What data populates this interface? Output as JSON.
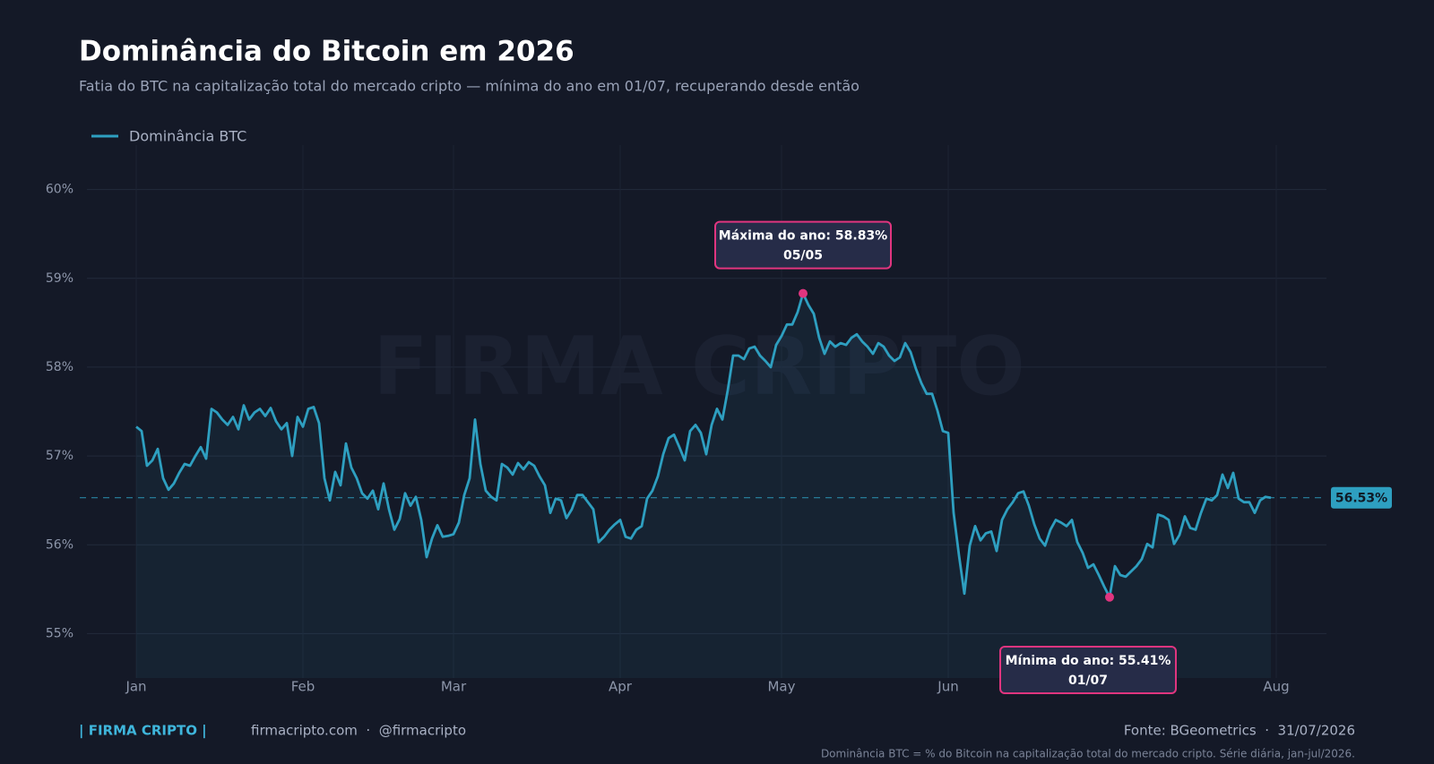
{
  "chart_data": {
    "type": "line",
    "title": "Dominância do Bitcoin em 2026",
    "subtitle": "Fatia do BTC na capitalização total do mercado cripto — mínima do ano em 01/07, recuperando desde então",
    "watermark": "FIRMA CRIPTO",
    "x": [
      "01/01",
      "02/01",
      "03/01",
      "04/01",
      "05/01",
      "06/01",
      "07/01",
      "08/01",
      "09/01",
      "10/01",
      "11/01",
      "12/01",
      "13/01",
      "14/01",
      "15/01",
      "16/01",
      "17/01",
      "18/01",
      "19/01",
      "20/01",
      "21/01",
      "22/01",
      "23/01",
      "24/01",
      "25/01",
      "26/01",
      "27/01",
      "28/01",
      "29/01",
      "30/01",
      "31/01",
      "01/02",
      "02/02",
      "03/02",
      "04/02",
      "05/02",
      "06/02",
      "07/02",
      "08/02",
      "09/02",
      "10/02",
      "11/02",
      "12/02",
      "13/02",
      "14/02",
      "15/02",
      "16/02",
      "17/02",
      "18/02",
      "19/02",
      "20/02",
      "21/02",
      "22/02",
      "23/02",
      "24/02",
      "25/02",
      "26/02",
      "27/02",
      "28/02",
      "01/03",
      "02/03",
      "03/03",
      "04/03",
      "05/03",
      "06/03",
      "07/03",
      "08/03",
      "09/03",
      "10/03",
      "11/03",
      "12/03",
      "13/03",
      "14/03",
      "15/03",
      "16/03",
      "17/03",
      "18/03",
      "19/03",
      "20/03",
      "21/03",
      "22/03",
      "23/03",
      "24/03",
      "25/03",
      "26/03",
      "27/03",
      "28/03",
      "29/03",
      "30/03",
      "31/03",
      "01/04",
      "02/04",
      "03/04",
      "04/04",
      "05/04",
      "06/04",
      "07/04",
      "08/04",
      "09/04",
      "10/04",
      "11/04",
      "12/04",
      "13/04",
      "14/04",
      "15/04",
      "16/04",
      "17/04",
      "18/04",
      "19/04",
      "20/04",
      "21/04",
      "22/04",
      "23/04",
      "24/04",
      "25/04",
      "26/04",
      "27/04",
      "28/04",
      "29/04",
      "30/04",
      "01/05",
      "02/05",
      "03/05",
      "04/05",
      "05/05",
      "06/05",
      "07/05",
      "08/05",
      "09/05",
      "10/05",
      "11/05",
      "12/05",
      "13/05",
      "14/05",
      "15/05",
      "16/05",
      "17/05",
      "18/05",
      "19/05",
      "20/05",
      "21/05",
      "22/05",
      "23/05",
      "24/05",
      "25/05",
      "26/05",
      "27/05",
      "28/05",
      "29/05",
      "30/05",
      "31/05",
      "01/06",
      "02/06",
      "03/06",
      "04/06",
      "05/06",
      "06/06",
      "07/06",
      "08/06",
      "09/06",
      "10/06",
      "11/06",
      "12/06",
      "13/06",
      "14/06",
      "15/06",
      "16/06",
      "17/06",
      "18/06",
      "19/06",
      "20/06",
      "21/06",
      "22/06",
      "23/06",
      "24/06",
      "25/06",
      "26/06",
      "27/06",
      "28/06",
      "29/06",
      "30/06",
      "01/07",
      "02/07",
      "03/07",
      "04/07",
      "05/07",
      "06/07",
      "07/07",
      "08/07",
      "09/07",
      "10/07",
      "11/07",
      "12/07",
      "13/07",
      "14/07",
      "15/07",
      "16/07",
      "17/07",
      "18/07",
      "19/07",
      "20/07",
      "21/07",
      "22/07",
      "23/07",
      "24/07",
      "25/07",
      "26/07",
      "27/07",
      "28/07",
      "29/07",
      "30/07",
      "31/07"
    ],
    "series": [
      {
        "name": "Dominância BTC",
        "color": "#2e9fc0",
        "values": [
          57.33,
          57.28,
          56.89,
          56.95,
          57.08,
          56.75,
          56.62,
          56.69,
          56.81,
          56.91,
          56.89,
          57.0,
          57.1,
          56.97,
          57.53,
          57.49,
          57.41,
          57.35,
          57.44,
          57.3,
          57.57,
          57.41,
          57.49,
          57.53,
          57.45,
          57.54,
          57.39,
          57.3,
          57.37,
          57.0,
          57.44,
          57.33,
          57.53,
          57.55,
          57.37,
          56.75,
          56.5,
          56.82,
          56.67,
          57.14,
          56.87,
          56.75,
          56.58,
          56.52,
          56.61,
          56.4,
          56.69,
          56.4,
          56.17,
          56.29,
          56.58,
          56.44,
          56.54,
          56.28,
          55.86,
          56.07,
          56.22,
          56.09,
          56.1,
          56.12,
          56.25,
          56.56,
          56.75,
          57.41,
          56.91,
          56.61,
          56.54,
          56.5,
          56.91,
          56.87,
          56.79,
          56.92,
          56.85,
          56.93,
          56.89,
          56.77,
          56.67,
          56.36,
          56.52,
          56.5,
          56.3,
          56.4,
          56.56,
          56.56,
          56.48,
          56.4,
          56.03,
          56.09,
          56.17,
          56.23,
          56.28,
          56.09,
          56.07,
          56.17,
          56.21,
          56.52,
          56.61,
          56.77,
          57.02,
          57.2,
          57.24,
          57.1,
          56.95,
          57.28,
          57.35,
          57.26,
          57.02,
          57.35,
          57.53,
          57.41,
          57.74,
          58.13,
          58.13,
          58.09,
          58.21,
          58.23,
          58.13,
          58.07,
          58.0,
          58.25,
          58.35,
          58.48,
          58.48,
          58.62,
          58.83,
          58.7,
          58.6,
          58.33,
          58.15,
          58.29,
          58.23,
          58.27,
          58.25,
          58.33,
          58.37,
          58.29,
          58.23,
          58.15,
          58.27,
          58.23,
          58.13,
          58.07,
          58.11,
          58.27,
          58.17,
          57.98,
          57.82,
          57.7,
          57.7,
          57.51,
          57.28,
          57.26,
          56.36,
          55.88,
          55.45,
          55.99,
          56.21,
          56.05,
          56.13,
          56.15,
          55.93,
          56.28,
          56.4,
          56.48,
          56.58,
          56.6,
          56.44,
          56.23,
          56.07,
          55.99,
          56.17,
          56.28,
          56.25,
          56.21,
          56.28,
          56.03,
          55.91,
          55.74,
          55.78,
          55.66,
          55.53,
          55.41,
          55.76,
          55.66,
          55.64,
          55.7,
          55.76,
          55.84,
          56.01,
          55.97,
          56.34,
          56.32,
          56.28,
          56.01,
          56.11,
          56.32,
          56.19,
          56.17,
          56.36,
          56.52,
          56.5,
          56.56,
          56.79,
          56.64,
          56.81,
          56.52,
          56.48,
          56.48,
          56.36,
          56.5,
          56.54,
          56.53
        ]
      }
    ],
    "xlim": [
      "01/01",
      "01/08"
    ],
    "xticks": [
      {
        "value": "01/01",
        "label": "Jan"
      },
      {
        "value": "01/02",
        "label": "Feb"
      },
      {
        "value": "01/03",
        "label": "Mar"
      },
      {
        "value": "01/04",
        "label": "Apr"
      },
      {
        "value": "01/05",
        "label": "May"
      },
      {
        "value": "01/06",
        "label": "Jun"
      },
      {
        "value": "01/08",
        "label": "Aug"
      }
    ],
    "ylim": [
      54.5,
      60.5
    ],
    "yticks": [
      {
        "value": 55,
        "label": "55%"
      },
      {
        "value": 56,
        "label": "56%"
      },
      {
        "value": 57,
        "label": "57%"
      },
      {
        "value": 58,
        "label": "58%"
      },
      {
        "value": 59,
        "label": "59%"
      },
      {
        "value": 60,
        "label": "60%"
      }
    ],
    "grid": true,
    "legend": "top-left",
    "reference": {
      "value": 56.53,
      "label": "56.53%"
    },
    "annotations": [
      {
        "label": "Máxima do ano: 58.83%",
        "x": "05/05",
        "value": 58.83,
        "color": "#e0357f",
        "position": "above"
      },
      {
        "label": "Mínima do ano: 55.41%",
        "x": "01/07",
        "value": 55.41,
        "color": "#e0357f",
        "position": "below"
      }
    ],
    "footer": {
      "brand": "| FIRMA CRIPTO |",
      "links": "firmacripto.com  ·  @firmacripto",
      "source": "Fonte: BGeometrics  ·  31/07/2026",
      "note": "Dominância BTC = % do Bitcoin na capitalização total do mercado cripto. Série diária, jan-jul/2026."
    }
  }
}
